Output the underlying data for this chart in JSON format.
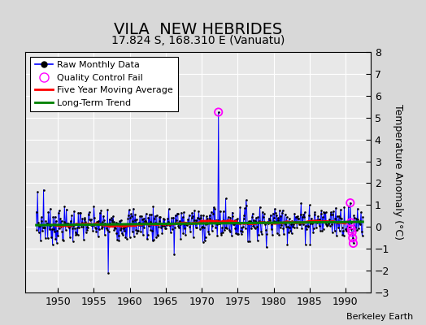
{
  "title": "VILA  NEW HEBRIDES",
  "subtitle": "17.824 S, 168.310 E (Vanuatu)",
  "ylabel": "Temperature Anomaly (°C)",
  "credit": "Berkeley Earth",
  "xlim": [
    1945.5,
    1993.5
  ],
  "ylim": [
    -3,
    8
  ],
  "yticks": [
    -3,
    -2,
    -1,
    0,
    1,
    2,
    3,
    4,
    5,
    6,
    7,
    8
  ],
  "xticks": [
    1950,
    1955,
    1960,
    1965,
    1970,
    1975,
    1980,
    1985,
    1990
  ],
  "fig_bg_color": "#d8d8d8",
  "axes_bg_color": "#e8e8e8",
  "grid_color": "white",
  "raw_line_color": "blue",
  "raw_dot_color": "black",
  "qc_fail_color": "magenta",
  "moving_avg_color": "red",
  "trend_color": "green",
  "title_fontsize": 14,
  "subtitle_fontsize": 10,
  "ylabel_fontsize": 9,
  "tick_labelsize": 9,
  "legend_fontsize": 8,
  "credit_fontsize": 8
}
